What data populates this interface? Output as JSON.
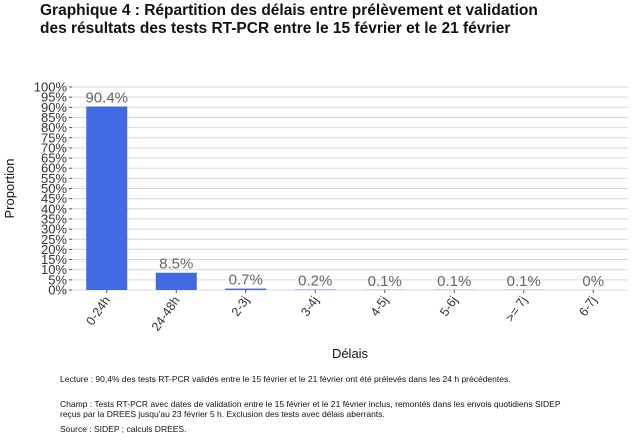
{
  "title_line1": "Graphique 4 : Répartition des délais entre prélèvement et validation",
  "title_line2": "des résultats des tests RT-PCR entre le 15 février et le 21 février",
  "chart_data": {
    "type": "bar",
    "categories": [
      "0-24h",
      "24-48h",
      "2-3j",
      "3-4j",
      "4-5j",
      "5-6j",
      ">= 7j",
      "6-7j"
    ],
    "values": [
      90.4,
      8.5,
      0.7,
      0.2,
      0.1,
      0.1,
      0.1,
      0
    ],
    "data_labels": [
      "90.4%",
      "8.5%",
      "0.7%",
      "0.2%",
      "0.1%",
      "0.1%",
      "0.1%",
      "0%"
    ],
    "xlabel": "Délais",
    "ylabel": "Proportion",
    "ylim": [
      0,
      100
    ],
    "yticks": [
      0,
      5,
      10,
      15,
      20,
      25,
      30,
      35,
      40,
      45,
      50,
      55,
      60,
      65,
      70,
      75,
      80,
      85,
      90,
      95,
      100
    ],
    "ytick_suffix": "%",
    "grid": true,
    "bar_color": "#4169e1"
  },
  "notes": {
    "lecture": "Lecture : 90,4% des tests RT-PCR validés entre le 15 février et le 21 février ont été prélevés dans les 24 h précédentes.",
    "champ_line1": "Champ : Tests RT-PCR avec dates de validation entre le 15 février et le 21 février inclus, remontés dans les envois quotidiens SIDEP",
    "champ_line2": "reçus par la DREES jusqu'au 23 février 5 h. Exclusion des tests avec délais aberrants.",
    "source": "Source : SIDEP ; calculs DREES."
  }
}
